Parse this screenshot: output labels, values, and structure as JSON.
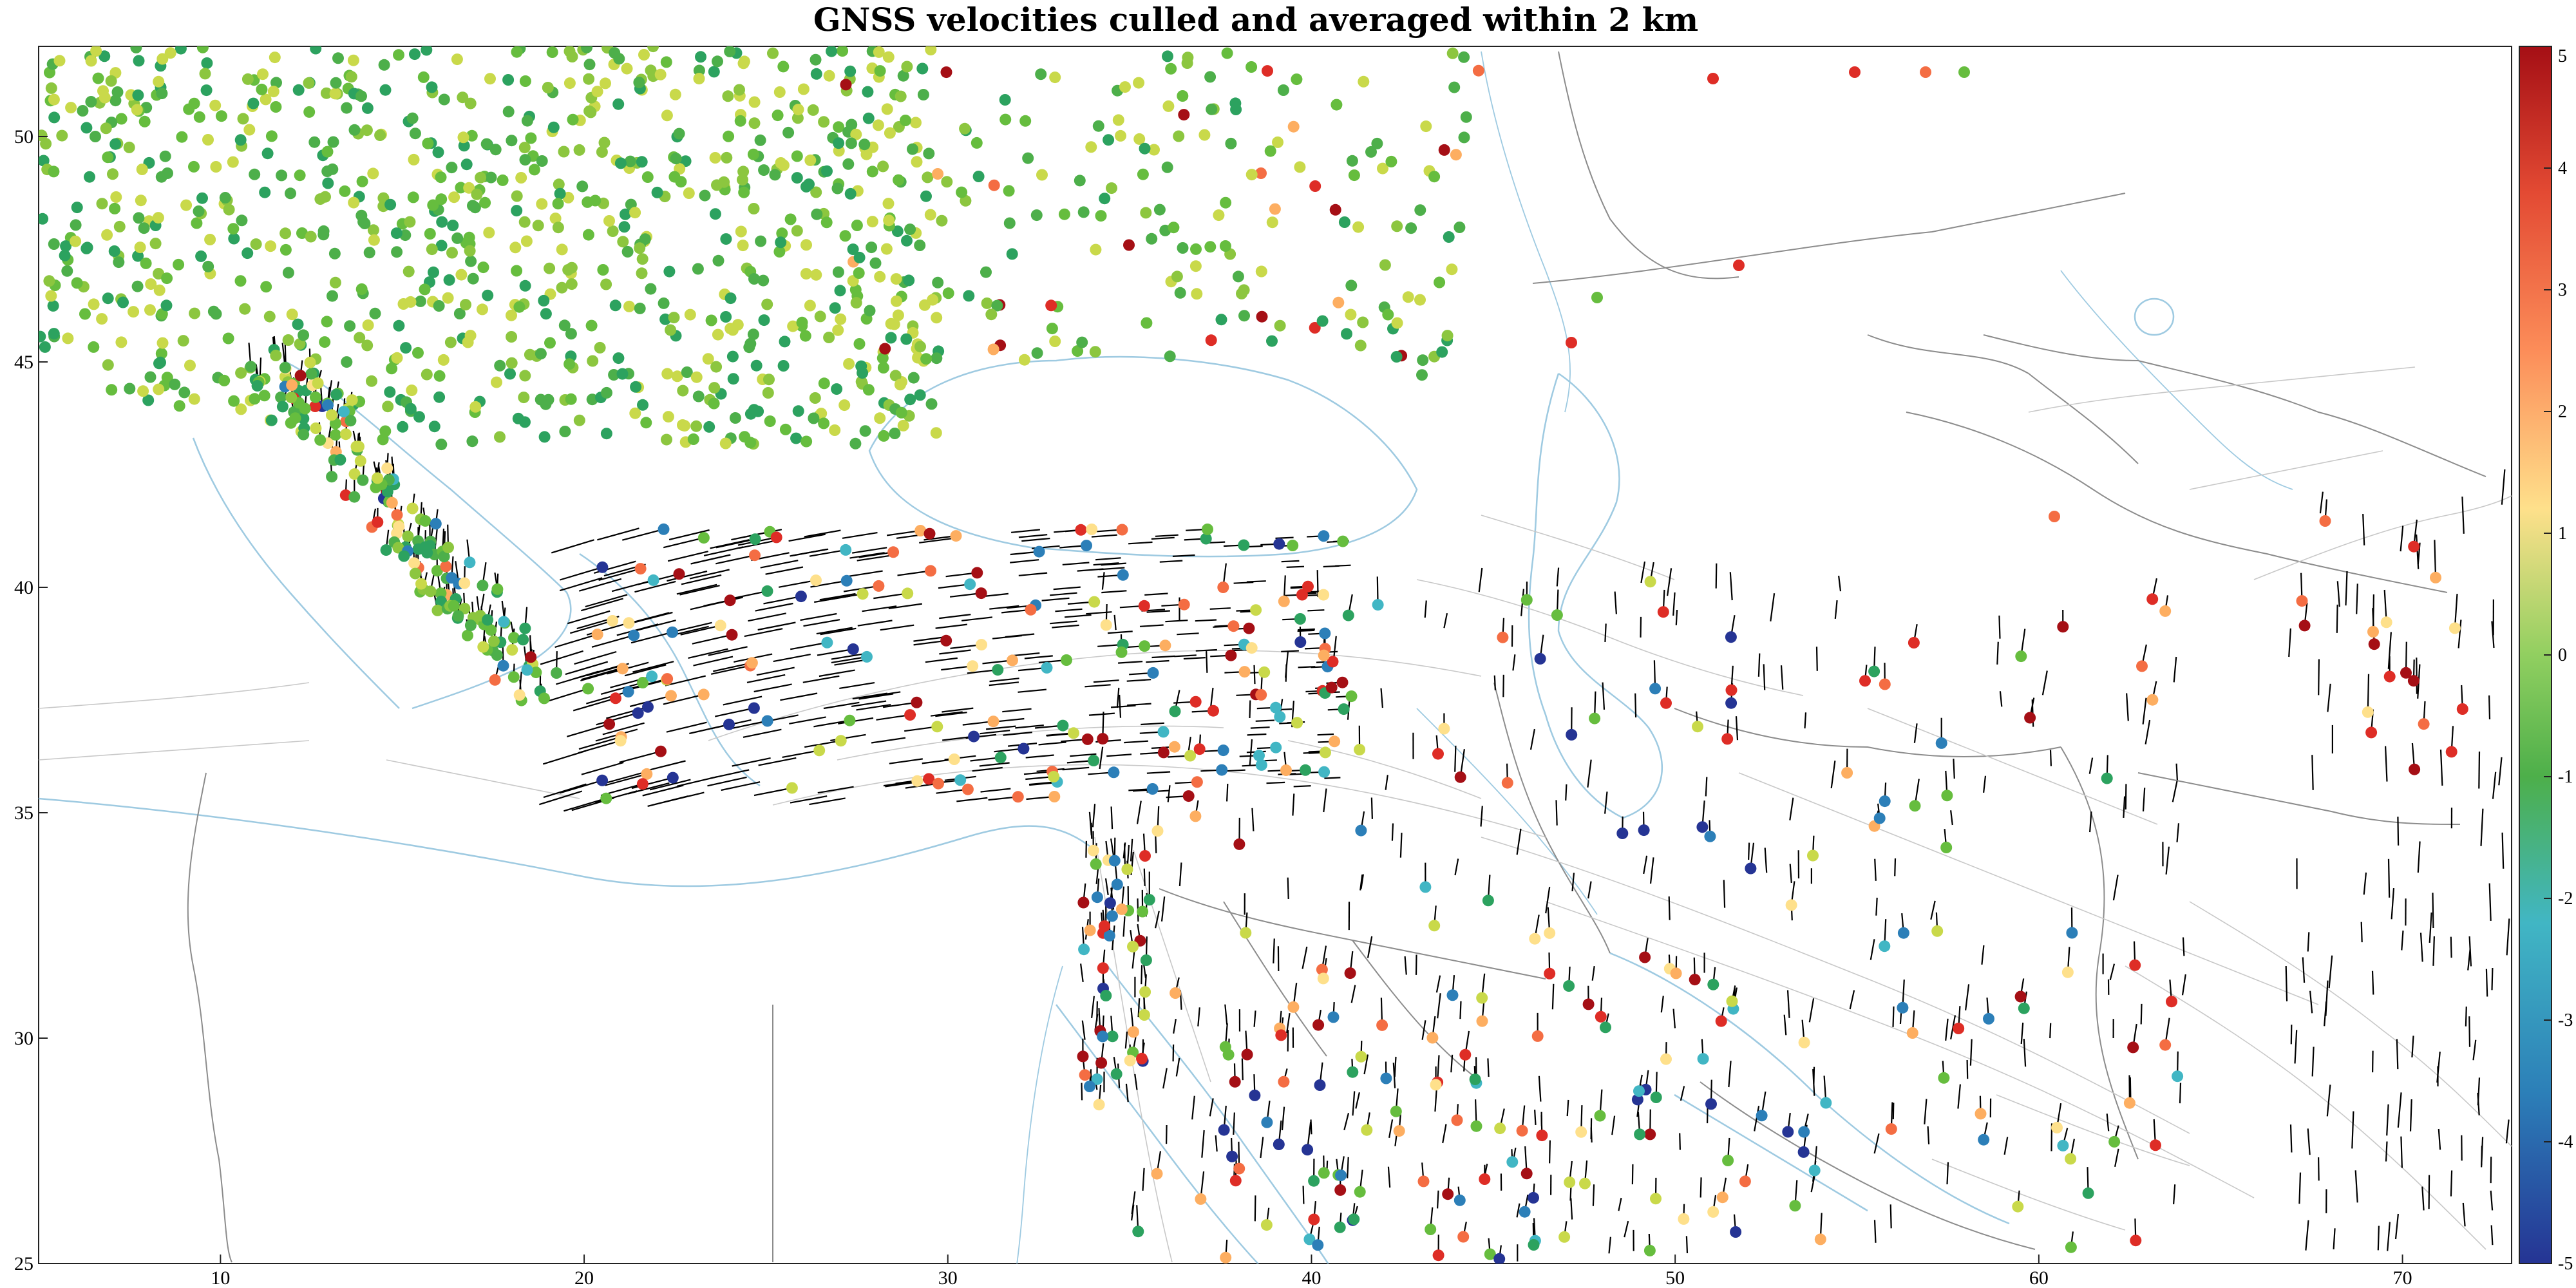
{
  "title": "GNSS velocities culled and averaged within 2 km",
  "map": {
    "lon_range": [
      5,
      73
    ],
    "lat_range": [
      25,
      52
    ],
    "x_ticks": [
      "10",
      "20",
      "30",
      "40",
      "50",
      "60",
      "70"
    ],
    "y_ticks": [
      "25",
      "30",
      "35",
      "40",
      "45",
      "50"
    ],
    "x_tick_values": [
      10,
      20,
      30,
      40,
      50,
      60,
      70
    ],
    "y_tick_values": [
      25,
      30,
      35,
      40,
      45,
      50
    ]
  },
  "colorbar": {
    "range": [
      -5,
      5
    ],
    "labels": [
      "5",
      "4",
      "3",
      "2",
      "1",
      "0",
      "-1",
      "-2",
      "-3",
      "-4",
      "-5"
    ],
    "colors": [
      "#a50f15",
      "#de2d26",
      "#f46d43",
      "#fdae61",
      "#fee08b",
      "#c9d94a",
      "#66bd3e",
      "#2ca25f",
      "#41b6c4",
      "#2c7fb8",
      "#253494"
    ]
  },
  "colors": {
    "coast": "#9ecae1",
    "border": "#8c8c8c",
    "fault": "#c8c8c8",
    "vector": "#000000"
  }
}
